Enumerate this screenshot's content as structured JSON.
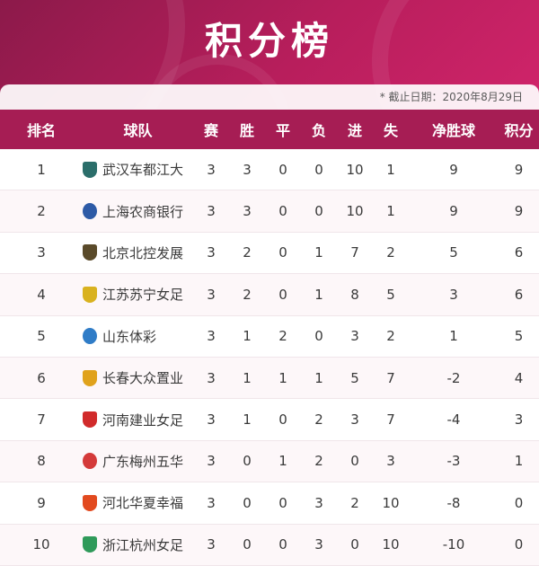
{
  "header": {
    "title": "积分榜",
    "deadline": "* 截止日期：2020年8月29日"
  },
  "columns": {
    "rank": "排名",
    "team": "球队",
    "played": "赛",
    "won": "胜",
    "drawn": "平",
    "lost": "负",
    "goals_for": "进",
    "goals_against": "失",
    "goal_diff": "净胜球",
    "points": "积分"
  },
  "rows": [
    {
      "rank": "1",
      "team": "武汉车都江大",
      "logo": "team-crest",
      "logo_color": "#2b6e6a",
      "p": "3",
      "w": "3",
      "d": "0",
      "l": "0",
      "gf": "10",
      "ga": "1",
      "gd": "9",
      "pts": "9"
    },
    {
      "rank": "2",
      "team": "上海农商银行",
      "logo": "team-crest",
      "logo_color": "#2d5aa6",
      "p": "3",
      "w": "3",
      "d": "0",
      "l": "0",
      "gf": "10",
      "ga": "1",
      "gd": "9",
      "pts": "9"
    },
    {
      "rank": "3",
      "team": "北京北控发展",
      "logo": "team-crest",
      "logo_color": "#5a4a2a",
      "p": "3",
      "w": "2",
      "d": "0",
      "l": "1",
      "gf": "7",
      "ga": "2",
      "gd": "5",
      "pts": "6"
    },
    {
      "rank": "4",
      "team": "江苏苏宁女足",
      "logo": "team-crest",
      "logo_color": "#d9b21f",
      "p": "3",
      "w": "2",
      "d": "0",
      "l": "1",
      "gf": "8",
      "ga": "5",
      "gd": "3",
      "pts": "6"
    },
    {
      "rank": "5",
      "team": "山东体彩",
      "logo": "team-crest",
      "logo_color": "#2f7cc7",
      "p": "3",
      "w": "1",
      "d": "2",
      "l": "0",
      "gf": "3",
      "ga": "2",
      "gd": "1",
      "pts": "5"
    },
    {
      "rank": "6",
      "team": "长春大众置业",
      "logo": "team-crest",
      "logo_color": "#e0a21c",
      "p": "3",
      "w": "1",
      "d": "1",
      "l": "1",
      "gf": "5",
      "ga": "7",
      "gd": "-2",
      "pts": "4"
    },
    {
      "rank": "7",
      "team": "河南建业女足",
      "logo": "team-crest",
      "logo_color": "#d12b2b",
      "p": "3",
      "w": "1",
      "d": "0",
      "l": "2",
      "gf": "3",
      "ga": "7",
      "gd": "-4",
      "pts": "3"
    },
    {
      "rank": "8",
      "team": "广东梅州五华",
      "logo": "team-crest",
      "logo_color": "#d43a3a",
      "p": "3",
      "w": "0",
      "d": "1",
      "l": "2",
      "gf": "0",
      "ga": "3",
      "gd": "-3",
      "pts": "1"
    },
    {
      "rank": "9",
      "team": "河北华夏幸福",
      "logo": "team-crest",
      "logo_color": "#e24a1f",
      "p": "3",
      "w": "0",
      "d": "0",
      "l": "3",
      "gf": "2",
      "ga": "10",
      "gd": "-8",
      "pts": "0"
    },
    {
      "rank": "10",
      "team": "浙江杭州女足",
      "logo": "team-crest",
      "logo_color": "#2f9a5a",
      "p": "3",
      "w": "0",
      "d": "0",
      "l": "3",
      "gf": "0",
      "ga": "10",
      "gd": "-10",
      "pts": "0"
    }
  ],
  "colors": {
    "banner": "#b81e5c",
    "header_row": "#a61d54"
  }
}
